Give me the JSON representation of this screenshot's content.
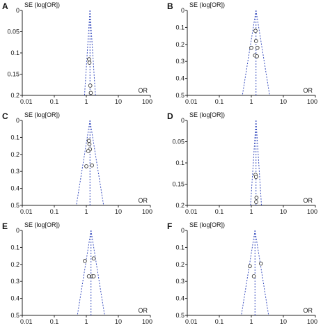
{
  "chart_data": [
    {
      "panel_label": "A",
      "type": "scatter",
      "subtype": "funnel",
      "ylabel": "SE (log[OR])",
      "xlabel": "OR",
      "x_scale": "log",
      "x_ticks": [
        "0.01",
        "0.1",
        "1",
        "10",
        "100"
      ],
      "xlim": [
        0.01,
        100
      ],
      "y_ticks": [
        "0",
        "0.05",
        "0.1",
        "0.15",
        "0.2"
      ],
      "ylim": [
        0,
        0.2
      ],
      "y_inverted": true,
      "pooled_or": 1.3,
      "points": [
        {
          "x": 1.22,
          "y": 0.115
        },
        {
          "x": 1.25,
          "y": 0.123
        },
        {
          "x": 1.33,
          "y": 0.177
        },
        {
          "x": 1.38,
          "y": 0.194
        }
      ]
    },
    {
      "panel_label": "B",
      "type": "scatter",
      "subtype": "funnel",
      "ylabel": "SE (log[OR])",
      "xlabel": "OR",
      "x_scale": "log",
      "x_ticks": [
        "0.01",
        "0.1",
        "1",
        "10",
        "100"
      ],
      "xlim": [
        0.01,
        100
      ],
      "y_ticks": [
        "0",
        "0.1",
        "0.2",
        "0.3",
        "0.4",
        "0.5"
      ],
      "ylim": [
        0,
        0.5
      ],
      "y_inverted": true,
      "pooled_or": 1.4,
      "points": [
        {
          "x": 1.35,
          "y": 0.12
        },
        {
          "x": 1.4,
          "y": 0.18
        },
        {
          "x": 1.0,
          "y": 0.22
        },
        {
          "x": 1.55,
          "y": 0.22
        },
        {
          "x": 1.3,
          "y": 0.265
        },
        {
          "x": 1.5,
          "y": 0.27
        }
      ]
    },
    {
      "panel_label": "C",
      "type": "scatter",
      "subtype": "funnel",
      "ylabel": "SE (log[OR])",
      "xlabel": "OR",
      "x_scale": "log",
      "x_ticks": [
        "0.01",
        "0.1",
        "1",
        "10",
        "100"
      ],
      "xlim": [
        0.01,
        100
      ],
      "y_ticks": [
        "0",
        "0.1",
        "0.2",
        "0.3",
        "0.4",
        "0.5"
      ],
      "ylim": [
        0,
        0.5
      ],
      "y_inverted": true,
      "pooled_or": 1.3,
      "points": [
        {
          "x": 1.2,
          "y": 0.12
        },
        {
          "x": 1.25,
          "y": 0.14
        },
        {
          "x": 1.3,
          "y": 0.17
        },
        {
          "x": 1.15,
          "y": 0.18
        },
        {
          "x": 1.0,
          "y": 0.27
        },
        {
          "x": 1.5,
          "y": 0.265
        }
      ]
    },
    {
      "panel_label": "D",
      "type": "scatter",
      "subtype": "funnel",
      "ylabel": "SE (log[OR])",
      "xlabel": "OR",
      "x_scale": "log",
      "x_ticks": [
        "0.01",
        "0.1",
        "1",
        "10",
        "100"
      ],
      "xlim": [
        0.01,
        100
      ],
      "y_ticks": [
        "0",
        "0.05",
        "0.1",
        "0.15",
        "0.2"
      ],
      "ylim": [
        0,
        0.2
      ],
      "y_inverted": true,
      "pooled_or": 1.4,
      "points": [
        {
          "x": 1.35,
          "y": 0.128
        },
        {
          "x": 1.4,
          "y": 0.133
        },
        {
          "x": 1.45,
          "y": 0.182
        },
        {
          "x": 1.42,
          "y": 0.192
        }
      ]
    },
    {
      "panel_label": "E",
      "type": "scatter",
      "subtype": "funnel",
      "ylabel": "SE (log[OR])",
      "xlabel": "OR",
      "x_scale": "log",
      "x_ticks": [
        "0.01",
        "0.1",
        "1",
        "10",
        "100"
      ],
      "xlim": [
        0.01,
        100
      ],
      "y_ticks": [
        "0",
        "0.1",
        "0.2",
        "0.3",
        "0.4",
        "0.5"
      ],
      "ylim": [
        0,
        0.5
      ],
      "y_inverted": true,
      "pooled_or": 1.4,
      "points": [
        {
          "x": 1.7,
          "y": 0.165
        },
        {
          "x": 0.9,
          "y": 0.18
        },
        {
          "x": 1.2,
          "y": 0.27
        },
        {
          "x": 1.55,
          "y": 0.27
        },
        {
          "x": 1.7,
          "y": 0.27
        }
      ]
    },
    {
      "panel_label": "F",
      "type": "scatter",
      "subtype": "funnel",
      "ylabel": "SE (log[OR])",
      "xlabel": "OR",
      "x_scale": "log",
      "x_ticks": [
        "0.01",
        "0.1",
        "1",
        "10",
        "100"
      ],
      "xlim": [
        0.01,
        100
      ],
      "y_ticks": [
        "0",
        "0.1",
        "0.2",
        "0.3",
        "0.4",
        "0.5"
      ],
      "ylim": [
        0,
        0.5
      ],
      "y_inverted": true,
      "pooled_or": 1.3,
      "points": [
        {
          "x": 2.0,
          "y": 0.195
        },
        {
          "x": 0.9,
          "y": 0.21
        },
        {
          "x": 1.2,
          "y": 0.27
        }
      ]
    }
  ],
  "colors": {
    "funnel_line": "#3a4fbf",
    "axis": "#222222",
    "marker": "#333333",
    "text": "#111111"
  }
}
